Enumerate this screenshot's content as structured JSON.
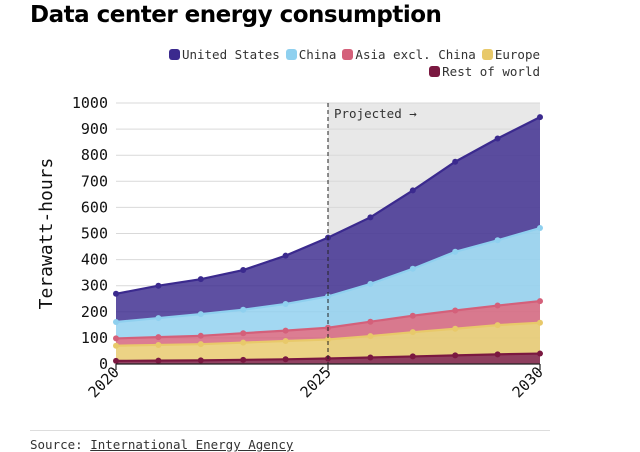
{
  "title": "Data center energy consumption",
  "source": {
    "label": "Source:",
    "link_text": "International Energy Agency"
  },
  "colors": {
    "us": "#3b2a8e",
    "china": "#8fd0ef",
    "asia": "#d4607a",
    "europe": "#e8c96a",
    "rest": "#7a1840",
    "projected_bg": "#e8e8e8"
  },
  "chart_data": {
    "type": "area",
    "stacked": true,
    "x": [
      2020,
      2021,
      2022,
      2023,
      2024,
      2025,
      2026,
      2027,
      2028,
      2029,
      2030
    ],
    "xticks": [
      "2020",
      "2025",
      "2030"
    ],
    "ylabel": "Terawatt-hours",
    "ylim": [
      0,
      1000
    ],
    "yticks": [
      "0",
      "100",
      "200",
      "300",
      "400",
      "500",
      "600",
      "700",
      "800",
      "900",
      "1000"
    ],
    "projected_from": 2025,
    "projected_label": "Projected →",
    "series": [
      {
        "name": "Rest of world",
        "key": "rest",
        "values": [
          12,
          13,
          14,
          16,
          18,
          21,
          25,
          29,
          33,
          37,
          40
        ]
      },
      {
        "name": "Europe",
        "key": "europe",
        "values": [
          58,
          60,
          62,
          66,
          70,
          73,
          82,
          93,
          102,
          112,
          118
        ]
      },
      {
        "name": "Asia excl. China",
        "key": "asia",
        "values": [
          28,
          30,
          32,
          36,
          40,
          45,
          55,
          63,
          70,
          75,
          83
        ]
      },
      {
        "name": "China",
        "key": "china",
        "values": [
          63,
          73,
          83,
          90,
          102,
          120,
          145,
          180,
          225,
          250,
          280
        ]
      },
      {
        "name": "United States",
        "key": "us",
        "values": [
          108,
          124,
          134,
          152,
          185,
          225,
          255,
          300,
          345,
          390,
          425
        ]
      }
    ]
  },
  "legend": [
    {
      "name": "United States",
      "key": "us"
    },
    {
      "name": "China",
      "key": "china"
    },
    {
      "name": "Asia excl. China",
      "key": "asia"
    },
    {
      "name": "Europe",
      "key": "europe"
    },
    {
      "name": "Rest of world",
      "key": "rest"
    }
  ]
}
